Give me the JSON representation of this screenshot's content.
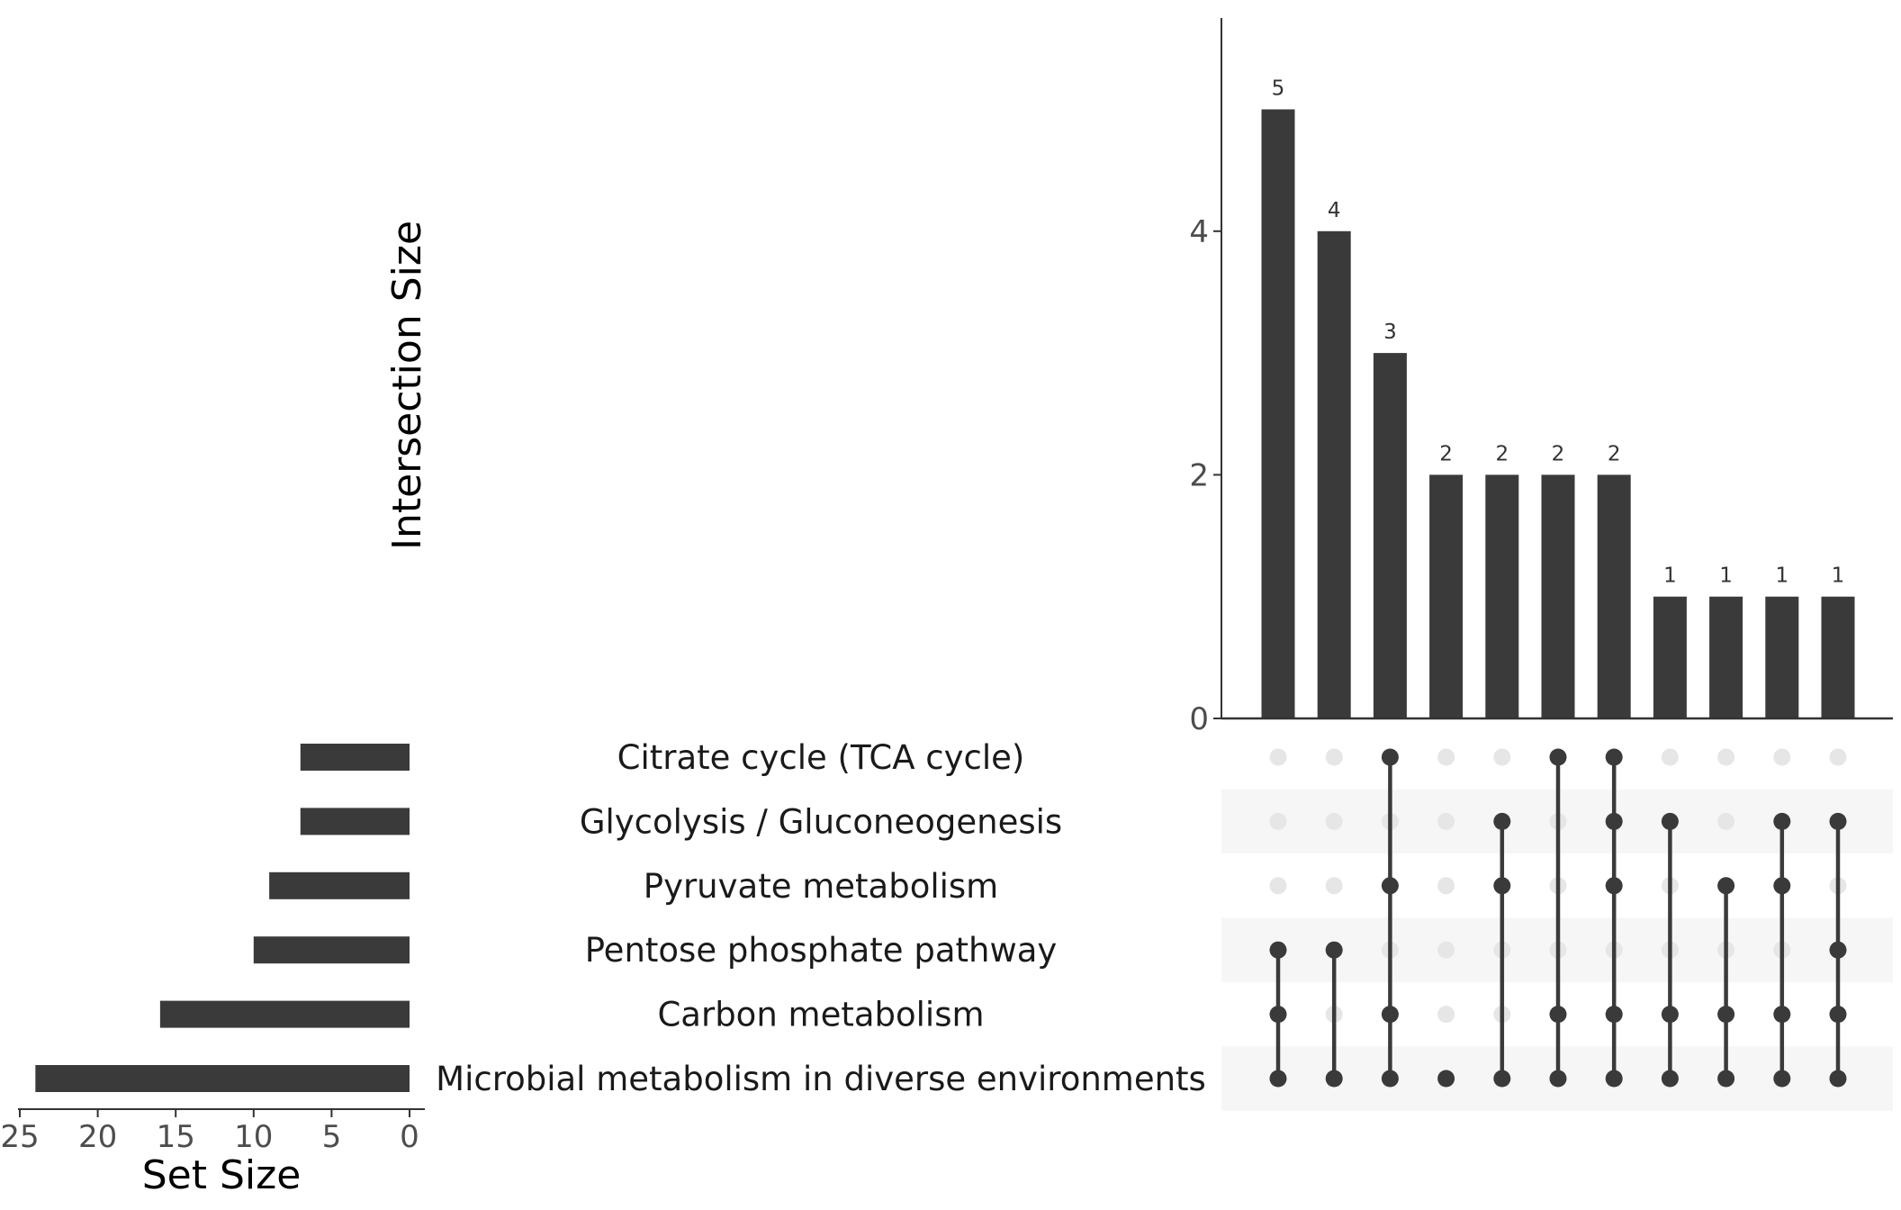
{
  "chart_data": {
    "type": "upset",
    "colors": {
      "bar": "#3a3a3a",
      "dot_active": "#3a3a3a",
      "dot_inactive": "#e6e6e6",
      "stripe": "#f6f6f6",
      "axis": "#333333"
    },
    "sets": [
      "Citrate cycle (TCA cycle)",
      "Glycolysis / Gluconeogenesis",
      "Pyruvate metabolism",
      "Pentose phosphate pathway",
      "Carbon metabolism",
      "Microbial metabolism in diverse environments"
    ],
    "set_sizes": [
      7,
      7,
      9,
      10,
      16,
      24
    ],
    "set_size_axis": {
      "title": "Set Size",
      "ticks": [
        25,
        20,
        15,
        10,
        5,
        0
      ],
      "range": [
        25,
        0
      ]
    },
    "intersection_axis": {
      "title": "Intersection Size",
      "ticks": [
        0,
        2,
        4
      ],
      "range": [
        0,
        5.75
      ]
    },
    "intersections": [
      {
        "size": 5,
        "label": "5",
        "members": [
          3,
          4,
          5
        ]
      },
      {
        "size": 4,
        "label": "4",
        "members": [
          3,
          5
        ]
      },
      {
        "size": 3,
        "label": "3",
        "members": [
          0,
          2,
          4,
          5
        ]
      },
      {
        "size": 2,
        "label": "2",
        "members": [
          5
        ]
      },
      {
        "size": 2,
        "label": "2",
        "members": [
          1,
          2,
          5
        ]
      },
      {
        "size": 2,
        "label": "2",
        "members": [
          0,
          4,
          5
        ]
      },
      {
        "size": 2,
        "label": "2",
        "members": [
          0,
          1,
          2,
          4,
          5
        ]
      },
      {
        "size": 1,
        "label": "1",
        "members": [
          1,
          4,
          5
        ]
      },
      {
        "size": 1,
        "label": "1",
        "members": [
          2,
          4,
          5
        ]
      },
      {
        "size": 1,
        "label": "1",
        "members": [
          1,
          2,
          4,
          5
        ]
      },
      {
        "size": 1,
        "label": "1",
        "members": [
          1,
          3,
          4,
          5
        ]
      }
    ]
  }
}
